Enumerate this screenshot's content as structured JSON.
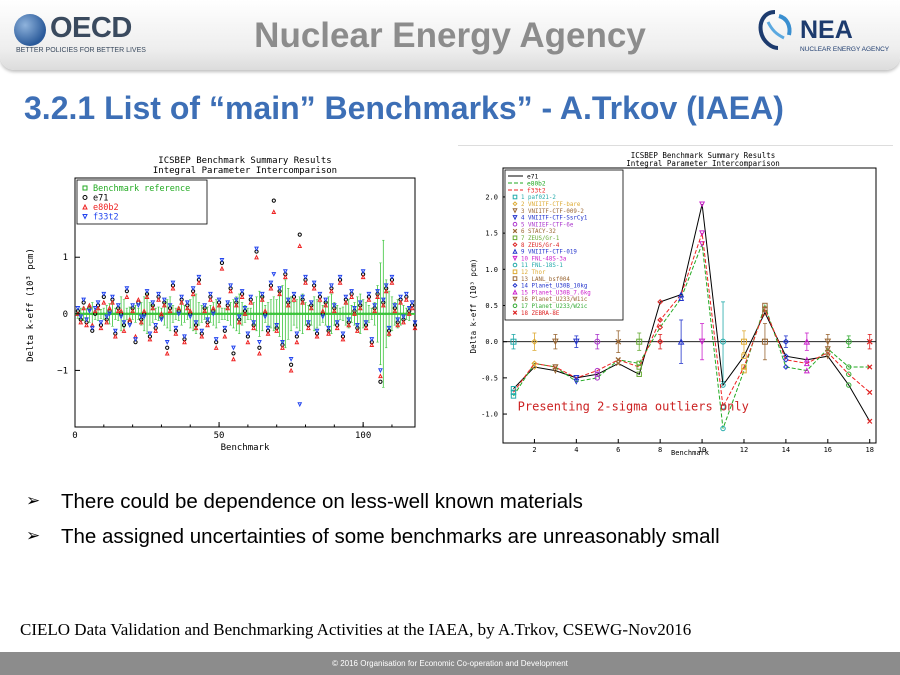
{
  "header": {
    "oecd_logo_text": "OECD",
    "oecd_tagline": "BETTER POLICIES FOR BETTER LIVES",
    "agency_title": "Nuclear Energy Agency",
    "nea_logo_text": "NEA",
    "nea_tagline": "NUCLEAR ENERGY AGENCY"
  },
  "slide_title": "3.2.1 List of “main” Benchmarks”  - A.Trkov (IAEA)",
  "bullets": [
    {
      "icon": "arrow-bullet-icon",
      "text": "There could be dependence on less-well known materials"
    },
    {
      "icon": "arrow-bullet-icon",
      "text": "The assigned uncertainties of some benchmarks are unreasonably small"
    }
  ],
  "footer_caption": "CIELO Data Validation and Benchmarking Activities at the IAEA, by A.Trkov, CSEWG-Nov2016",
  "copyright": "© 2016 Organisation for Economic Co-operation and Development",
  "chart_data": [
    {
      "type": "scatter",
      "title": "ICSBEP Benchmark Summary Results",
      "subtitle": "Integral Parameter Intercomparison",
      "xlabel": "Benchmark",
      "ylabel": "Delta k-eff (10³ pcm)",
      "xlim": [
        0,
        118
      ],
      "ylim": [
        -2.0,
        2.4
      ],
      "xticks": [
        0,
        50,
        100
      ],
      "yticks": [
        -1,
        0,
        1
      ],
      "legend": [
        {
          "name": "Benchmark reference",
          "symbol": "square",
          "color": "#22aa22"
        },
        {
          "name": "e71",
          "symbol": "circle",
          "color": "#000000"
        },
        {
          "name": "e80b2",
          "symbol": "triangle-up",
          "color": "#ee2222"
        },
        {
          "name": "f33t2",
          "symbol": "triangle-down",
          "color": "#2244ee"
        }
      ],
      "legend_position": "top-left",
      "reference_error_bars": [
        0.08,
        0.1,
        0.12,
        0.09,
        0.15,
        0.2,
        0.1,
        0.12,
        0.08,
        0.1,
        0.15,
        0.18,
        0.22,
        0.1,
        0.12,
        0.3,
        0.25,
        0.1,
        0.12,
        0.1,
        0.15,
        0.1,
        0.2,
        0.3,
        0.35,
        0.2,
        0.15,
        0.1,
        0.12,
        0.1,
        0.2,
        0.25,
        0.3,
        0.15,
        0.1,
        0.12,
        0.2,
        0.15,
        0.1,
        0.25,
        0.3,
        0.35,
        0.2,
        0.15,
        0.1,
        0.12,
        0.15,
        0.2,
        0.25,
        0.15,
        0.1,
        0.1,
        0.12,
        0.2,
        0.25,
        0.3,
        0.35,
        0.2,
        0.15,
        0.1,
        0.1,
        0.2,
        0.3,
        0.4,
        0.3,
        0.15,
        0.2,
        0.25,
        0.3,
        0.25,
        0.4,
        0.5,
        0.6,
        0.45,
        0.3,
        0.2,
        0.25,
        0.3,
        0.35,
        0.2,
        0.15,
        0.2,
        0.3,
        0.25,
        0.2,
        0.15,
        0.2,
        0.3,
        0.35,
        0.2,
        0.15,
        0.1,
        0.12,
        0.2,
        0.25,
        0.15,
        0.2,
        0.3,
        0.35,
        0.25,
        0.2,
        0.15,
        0.1,
        0.2,
        0.5,
        0.9,
        1.3,
        0.6,
        0.4,
        0.3,
        0.2,
        0.25,
        0.2,
        0.15,
        0.1,
        0.12
      ],
      "series": [
        {
          "name": "e71",
          "values": [
            0.05,
            -0.1,
            0.2,
            -0.15,
            0.1,
            -0.3,
            0.0,
            0.15,
            -0.2,
            0.3,
            -0.1,
            0.05,
            0.25,
            -0.35,
            0.1,
            0.0,
            -0.2,
            0.4,
            -0.15,
            0.1,
            -0.5,
            0.2,
            -0.1,
            0.0,
            0.35,
            -0.4,
            0.15,
            -0.25,
            0.3,
            -0.05,
            0.2,
            -0.6,
            0.1,
            0.5,
            -0.3,
            0.05,
            0.25,
            -0.45,
            0.15,
            0.0,
            0.4,
            -0.2,
            0.6,
            -0.35,
            0.1,
            -0.15,
            0.3,
            0.05,
            -0.5,
            0.2,
            0.9,
            -0.3,
            0.15,
            0.45,
            -0.7,
            0.2,
            -0.1,
            0.35,
            0.05,
            -0.4,
            0.25,
            -0.2,
            1.1,
            -0.6,
            0.3,
            0.0,
            -0.3,
            0.5,
            2.0,
            -0.25,
            0.4,
            -0.55,
            0.7,
            0.2,
            -0.9,
            0.3,
            -0.4,
            1.4,
            0.25,
            0.6,
            -0.2,
            0.15,
            0.5,
            -0.35,
            0.3,
            0.0,
            0.2,
            -0.3,
            0.45,
            0.1,
            -0.2,
            0.6,
            -0.4,
            0.25,
            -0.15,
            0.35,
            0.05,
            -0.25,
            0.15,
            0.7,
            -0.2,
            0.3,
            -0.5,
            0.1,
            0.35,
            -1.2,
            0.2,
            0.45,
            -0.3,
            0.6,
            0.1,
            -0.15,
            0.25,
            -0.1,
            0.3,
            0.05,
            0.15,
            -0.2
          ]
        },
        {
          "name": "e80b2",
          "values": [
            0.0,
            -0.15,
            0.1,
            -0.2,
            0.15,
            -0.2,
            0.05,
            0.1,
            -0.25,
            0.2,
            -0.15,
            0.1,
            0.2,
            -0.4,
            0.05,
            0.05,
            -0.3,
            0.3,
            -0.1,
            0.05,
            -0.4,
            0.25,
            -0.15,
            0.05,
            0.3,
            -0.45,
            0.1,
            -0.3,
            0.25,
            0.0,
            0.15,
            -0.7,
            0.05,
            0.45,
            -0.35,
            0.1,
            0.2,
            -0.5,
            0.1,
            0.05,
            0.35,
            -0.25,
            0.55,
            -0.4,
            0.05,
            -0.2,
            0.25,
            0.1,
            -0.6,
            0.15,
            0.8,
            -0.4,
            0.1,
            0.4,
            -0.8,
            0.15,
            -0.15,
            0.3,
            0.0,
            -0.5,
            0.2,
            -0.25,
            1.0,
            -0.7,
            0.25,
            0.05,
            -0.35,
            0.45,
            1.8,
            -0.3,
            0.35,
            -0.6,
            0.65,
            0.15,
            -1.0,
            0.25,
            -0.5,
            1.2,
            0.2,
            0.55,
            -0.25,
            0.1,
            0.45,
            -0.4,
            0.25,
            0.05,
            0.15,
            -0.35,
            0.4,
            0.05,
            -0.25,
            0.55,
            -0.45,
            0.2,
            -0.2,
            0.3,
            0.0,
            -0.3,
            0.1,
            0.65,
            -0.25,
            0.25,
            -0.55,
            0.05,
            0.3,
            -1.1,
            0.15,
            0.4,
            -0.35,
            0.55,
            0.05,
            -0.2,
            0.2,
            -0.15,
            0.25,
            0.0,
            0.1,
            -0.25
          ]
        },
        {
          "name": "f33t2",
          "values": [
            0.1,
            -0.05,
            0.25,
            -0.1,
            0.05,
            -0.25,
            0.1,
            0.2,
            -0.15,
            0.35,
            -0.05,
            0.0,
            0.3,
            -0.3,
            0.15,
            -0.05,
            -0.15,
            0.45,
            -0.2,
            0.15,
            -0.45,
            0.15,
            -0.05,
            -0.05,
            0.4,
            -0.35,
            0.2,
            -0.2,
            0.35,
            -0.1,
            0.25,
            -0.5,
            0.15,
            0.55,
            -0.25,
            0.0,
            0.3,
            -0.4,
            0.2,
            -0.05,
            0.45,
            -0.15,
            0.65,
            -0.3,
            0.15,
            -0.1,
            0.35,
            0.0,
            -0.45,
            0.25,
            0.95,
            -0.25,
            0.2,
            0.5,
            -0.6,
            0.25,
            -0.05,
            0.4,
            0.1,
            -0.35,
            0.3,
            -0.15,
            1.15,
            -0.5,
            0.35,
            -0.05,
            -0.25,
            0.55,
            0.7,
            -0.2,
            0.45,
            -0.5,
            0.75,
            0.25,
            -0.8,
            0.35,
            -0.35,
            -1.6,
            0.3,
            0.65,
            -0.15,
            0.2,
            0.55,
            -0.3,
            0.35,
            -0.05,
            0.25,
            -0.25,
            0.5,
            0.15,
            -0.15,
            0.65,
            -0.35,
            0.3,
            -0.1,
            0.4,
            0.1,
            -0.2,
            0.2,
            0.75,
            -0.15,
            0.35,
            -0.45,
            0.15,
            0.4,
            -1.0,
            0.25,
            0.5,
            -0.25,
            0.65,
            0.15,
            -0.1,
            0.3,
            -0.05,
            0.35,
            0.1,
            0.2,
            -0.15
          ]
        }
      ]
    },
    {
      "type": "line",
      "title": "ICSBEP Benchmark Summary Results",
      "subtitle": "Integral Parameter Intercomparison",
      "xlabel": "Benchmark",
      "ylabel": "Delta k-eff (10³ pcm)",
      "xlim": [
        0.5,
        18.3
      ],
      "ylim": [
        -1.4,
        2.4
      ],
      "xticks": [
        2,
        4,
        6,
        8,
        10,
        12,
        14,
        16,
        18
      ],
      "yticks": [
        -1.0,
        -0.5,
        0.0,
        0.5,
        1.0,
        1.5,
        2.0
      ],
      "annotation": "Presenting 2-sigma outliers only",
      "legend_position": "top-left",
      "legend_lines": [
        {
          "name": "e71",
          "color": "#000000",
          "dash": ""
        },
        {
          "name": "e80b2",
          "color": "#22aa22",
          "dash": "4 2"
        },
        {
          "name": "f33t2",
          "color": "#ee2222",
          "dash": "4 2"
        }
      ],
      "benchmarks": [
        {
          "name": "1 paf021-2",
          "color": "#22aaaa"
        },
        {
          "name": "2 VNIITF-CTF-bare",
          "color": "#ddaa33"
        },
        {
          "name": "3 VNIITF-CTF-009-2",
          "color": "#996633"
        },
        {
          "name": "4 VNIITF-CTF-SsrCy1",
          "color": "#2233cc"
        },
        {
          "name": "5 VNIIEF-CTF-6e",
          "color": "#aa33cc"
        },
        {
          "name": "6 STACY-32",
          "color": "#996633"
        },
        {
          "name": "7 ZEUS/Gr-1",
          "color": "#66aa33"
        },
        {
          "name": "8 ZEUS/Gr-4",
          "color": "#dd2222"
        },
        {
          "name": "9 VNIITF-CTF-019",
          "color": "#2233cc"
        },
        {
          "name": "10 FNL-48S-3a",
          "color": "#cc22cc"
        },
        {
          "name": "11 FNL-18S-1",
          "color": "#22aaaa"
        },
        {
          "name": "12 Thor",
          "color": "#ddaa33"
        },
        {
          "name": "13 LANL_bsf004",
          "color": "#996633"
        },
        {
          "name": "14 Planet_U30B_10kg",
          "color": "#2233cc"
        },
        {
          "name": "15 Planet_U30B_7.6kg",
          "color": "#cc22cc"
        },
        {
          "name": "16 Planet_U233/W1ic",
          "color": "#996633"
        },
        {
          "name": "17 Planet_U233/W2ic",
          "color": "#33aa33"
        },
        {
          "name": "18 ZEBRA-8E",
          "color": "#dd2222"
        }
      ],
      "x": [
        1,
        2,
        3,
        4,
        5,
        6,
        7,
        8,
        9,
        10,
        11,
        12,
        13,
        14,
        15,
        16,
        17,
        18
      ],
      "reference": [
        0.0,
        0.0,
        0.0,
        0.0,
        0.0,
        0.0,
        0.0,
        0.0,
        0.0,
        0.0,
        0.0,
        0.0,
        0.0,
        0.0,
        0.0,
        0.0,
        0.0,
        0.0
      ],
      "reference_errors": [
        0.1,
        0.12,
        0.1,
        0.08,
        0.1,
        0.15,
        0.12,
        0.1,
        0.3,
        0.25,
        0.55,
        0.15,
        0.25,
        0.08,
        0.12,
        0.1,
        0.08,
        0.1
      ],
      "series": [
        {
          "name": "e71",
          "values": [
            -0.65,
            -0.35,
            -0.4,
            -0.5,
            -0.45,
            -0.3,
            -0.45,
            0.55,
            0.65,
            1.9,
            -0.6,
            -0.2,
            0.4,
            -0.2,
            -0.25,
            -0.2,
            -0.6,
            -1.1
          ]
        },
        {
          "name": "e80b2",
          "values": [
            -0.75,
            -0.3,
            -0.35,
            -0.55,
            -0.5,
            -0.25,
            -0.3,
            0.2,
            0.6,
            1.35,
            -1.2,
            -0.4,
            0.5,
            -0.35,
            -0.4,
            -0.1,
            -0.35,
            -0.35
          ]
        },
        {
          "name": "f33t2",
          "values": [
            -0.7,
            -0.3,
            -0.35,
            -0.5,
            -0.4,
            -0.25,
            -0.35,
            0.3,
            0.65,
            1.5,
            -0.9,
            -0.35,
            0.45,
            -0.25,
            -0.3,
            -0.15,
            -0.45,
            -0.7
          ]
        }
      ]
    }
  ]
}
